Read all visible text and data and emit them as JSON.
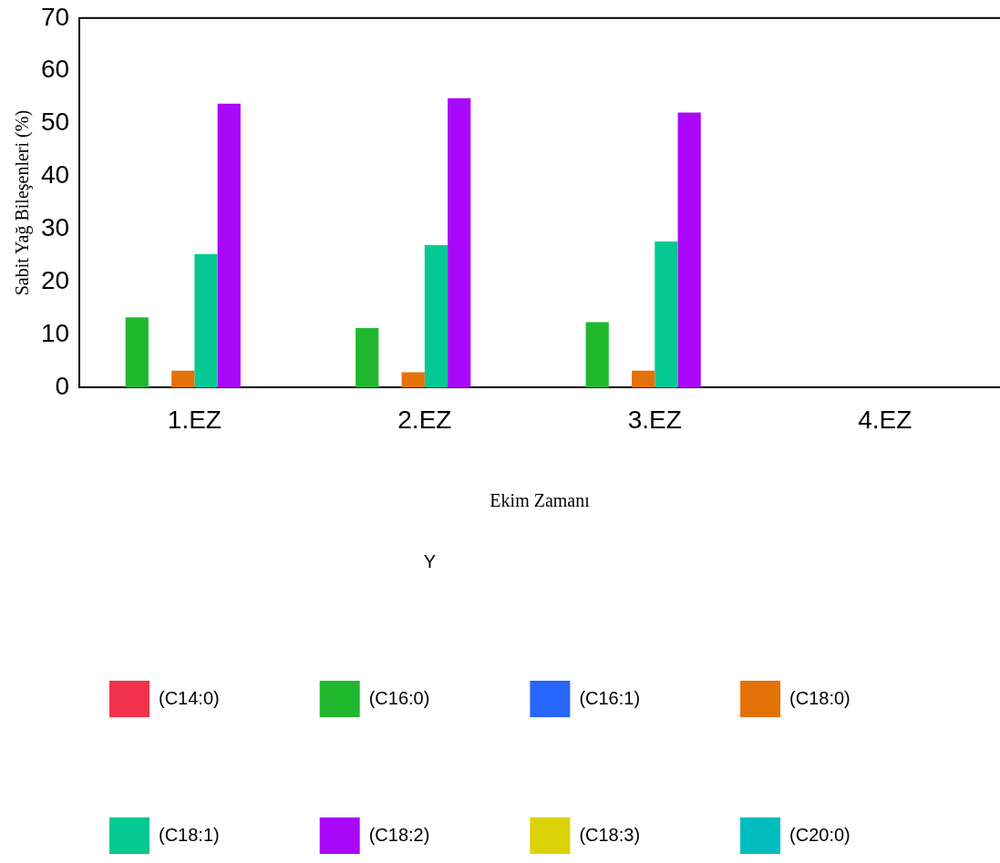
{
  "chart_data": {
    "type": "bar",
    "xlabel": "Ekim Zamanı",
    "ylabel": "Sabit Yağ Bileşenleri (%)",
    "legend_title": "Y",
    "legend": "bottom",
    "grid": false,
    "categories": [
      "1.EZ",
      "2.EZ",
      "3.EZ",
      "4.EZ"
    ],
    "ylim": [
      0,
      70
    ],
    "yticks": [
      0,
      10,
      20,
      30,
      40,
      50,
      60,
      70
    ],
    "series": [
      {
        "name": "(C14:0)",
        "color": "#f0334a",
        "values": [
          0,
          0,
          0,
          null
        ]
      },
      {
        "name": "(C16:0)",
        "color": "#21b82f",
        "values": [
          13.3,
          11.3,
          12.4,
          null
        ]
      },
      {
        "name": "(C16:1)",
        "color": "#2766fb",
        "values": [
          0,
          0,
          0,
          null
        ]
      },
      {
        "name": "(C18:0)",
        "color": "#e37209",
        "values": [
          3.2,
          2.9,
          3.2,
          null
        ]
      },
      {
        "name": "(C18:1)",
        "color": "#06c893",
        "values": [
          25.3,
          27.0,
          27.7,
          null
        ]
      },
      {
        "name": "(C18:2)",
        "color": "#aa09f9",
        "values": [
          53.8,
          54.8,
          52.1,
          null
        ]
      },
      {
        "name": "(C18:3)",
        "color": "#dbd307",
        "values": [
          0,
          0,
          0,
          null
        ]
      },
      {
        "name": "(C20:0)",
        "color": "#02bcbe",
        "values": [
          0,
          0,
          0,
          null
        ]
      }
    ]
  }
}
